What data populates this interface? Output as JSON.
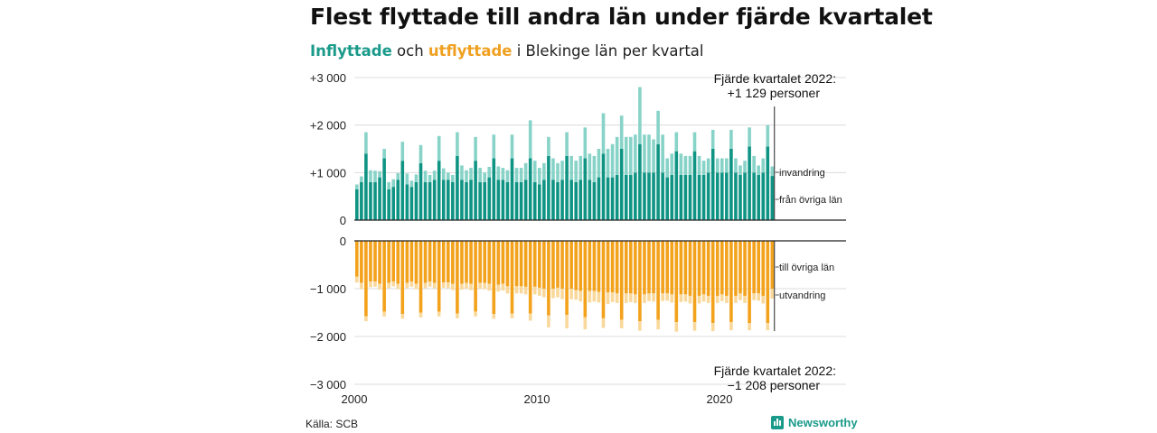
{
  "title": "Flest flyttade till andra län under fjärde kvartalet",
  "subtitle": {
    "part1": "Inflyttade",
    "part2": " och ",
    "part3": "utflyttade",
    "part4": " i Blekinge län per kvartal"
  },
  "source": "Källa: SCB",
  "logo_text": "Newsworthy",
  "colors": {
    "inflow_domestic": "#0f9484",
    "inflow_immigration": "#88d3c8",
    "outflow_domestic": "#f3a21c",
    "outflow_emigration": "#f9d89b"
  },
  "chart_data": {
    "type": "bar",
    "stacked": true,
    "x_start": "2000 Q1",
    "x_end": "2022 Q4",
    "frequency": "quarterly",
    "xticks": [
      "2000",
      "2010",
      "2020"
    ],
    "yticks_top": [
      "+3 000",
      "+2 000",
      "+1 000",
      "0"
    ],
    "yticks_bottom": [
      "0",
      "−1 000",
      "−2 000",
      "−3 000"
    ],
    "ylim_top": [
      0,
      3000
    ],
    "ylim_bottom": [
      -3000,
      0
    ],
    "grid": true,
    "series_labels": {
      "invandring": "invandring",
      "fran_ovriga_lan": "från övriga län",
      "till_ovriga_lan": "till övriga län",
      "utvandring": "utvandring"
    },
    "annotation_top": {
      "line1": "Fjärde kvartalet 2022:",
      "line2": "+1 129 personer"
    },
    "annotation_bottom": {
      "line1": "Fjärde kvartalet 2022:",
      "line2": "−1 208 personer"
    },
    "inflow_from_other_counties": [
      650,
      800,
      1400,
      800,
      800,
      900,
      1300,
      650,
      700,
      850,
      1250,
      750,
      700,
      800,
      1200,
      800,
      800,
      850,
      1250,
      850,
      850,
      800,
      1350,
      850,
      800,
      850,
      1250,
      800,
      800,
      900,
      1300,
      850,
      850,
      800,
      1300,
      800,
      800,
      850,
      1300,
      800,
      750,
      850,
      1350,
      850,
      800,
      850,
      1350,
      850,
      800,
      850,
      1300,
      850,
      800,
      900,
      1400,
      900,
      900,
      950,
      1500,
      950,
      950,
      1000,
      1600,
      1000,
      1000,
      1000,
      1600,
      1000,
      900,
      950,
      1450,
      950,
      950,
      950,
      1450,
      950,
      950,
      1000,
      1500,
      1000,
      1000,
      1000,
      1500,
      1000,
      950,
      1000,
      1550,
      1000,
      950,
      1000,
      1550,
      929
    ],
    "inflow_immigration": [
      100,
      120,
      450,
      250,
      240,
      130,
      200,
      150,
      160,
      140,
      400,
      230,
      130,
      160,
      380,
      240,
      150,
      190,
      520,
      240,
      150,
      150,
      500,
      300,
      250,
      250,
      500,
      300,
      200,
      220,
      500,
      280,
      250,
      250,
      500,
      300,
      300,
      350,
      800,
      450,
      350,
      350,
      400,
      450,
      400,
      400,
      500,
      500,
      450,
      500,
      650,
      550,
      550,
      600,
      850,
      600,
      700,
      800,
      700,
      800,
      800,
      800,
      1200,
      800,
      800,
      700,
      700,
      800,
      400,
      450,
      400,
      450,
      400,
      400,
      400,
      400,
      300,
      300,
      400,
      300,
      300,
      300,
      400,
      300,
      200,
      250,
      400,
      350,
      200,
      300,
      450,
      200
    ],
    "outflow_to_other_counties": [
      750,
      880,
      1580,
      850,
      850,
      900,
      1480,
      880,
      850,
      900,
      1530,
      880,
      850,
      900,
      1500,
      880,
      850,
      880,
      1480,
      870,
      870,
      900,
      1520,
      900,
      880,
      900,
      1480,
      880,
      880,
      900,
      1530,
      920,
      900,
      950,
      1520,
      950,
      950,
      960,
      1520,
      960,
      980,
      1000,
      1560,
      1000,
      980,
      1000,
      1550,
      1000,
      1030,
      1050,
      1600,
      1050,
      1050,
      1070,
      1620,
      1080,
      1080,
      1100,
      1650,
      1100,
      1100,
      1120,
      1680,
      1120,
      1100,
      1100,
      1650,
      1100,
      1100,
      1120,
      1700,
      1120,
      1120,
      1150,
      1700,
      1150,
      1120,
      1150,
      1720,
      1150,
      1120,
      1150,
      1700,
      1150,
      1100,
      1150,
      1720,
      1100,
      1100,
      1150,
      1720,
      1000
    ],
    "outflow_emigration": [
      120,
      130,
      100,
      120,
      110,
      120,
      100,
      110,
      100,
      110,
      100,
      110,
      110,
      110,
      100,
      110,
      110,
      110,
      100,
      110,
      120,
      130,
      100,
      120,
      120,
      130,
      100,
      120,
      130,
      140,
      100,
      140,
      140,
      150,
      100,
      150,
      150,
      160,
      150,
      160,
      170,
      180,
      250,
      200,
      200,
      220,
      280,
      220,
      200,
      220,
      250,
      240,
      220,
      220,
      200,
      240,
      200,
      200,
      180,
      200,
      180,
      180,
      200,
      180,
      160,
      170,
      200,
      160,
      150,
      170,
      200,
      160,
      150,
      160,
      180,
      160,
      150,
      150,
      170,
      150,
      140,
      150,
      170,
      150,
      140,
      150,
      150,
      140,
      150,
      160,
      150,
      208
    ]
  }
}
